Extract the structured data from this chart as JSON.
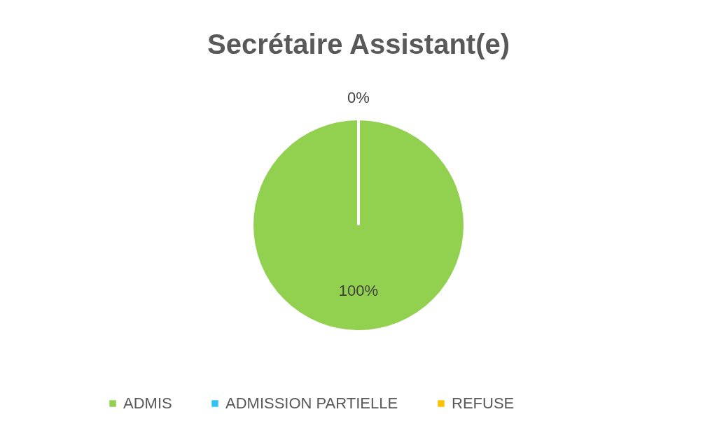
{
  "chart_data": {
    "type": "pie",
    "title": "Secrétaire Assistant(e)",
    "categories": [
      "ADMIS",
      "ADMISSION PARTIELLE",
      "REFUSE"
    ],
    "values": [
      100,
      0,
      0
    ],
    "colors": [
      "#92d050",
      "#2fc4f5",
      "#ffc000"
    ],
    "value_labels": [
      "100%",
      "0%",
      null
    ],
    "legend": "bottom"
  }
}
